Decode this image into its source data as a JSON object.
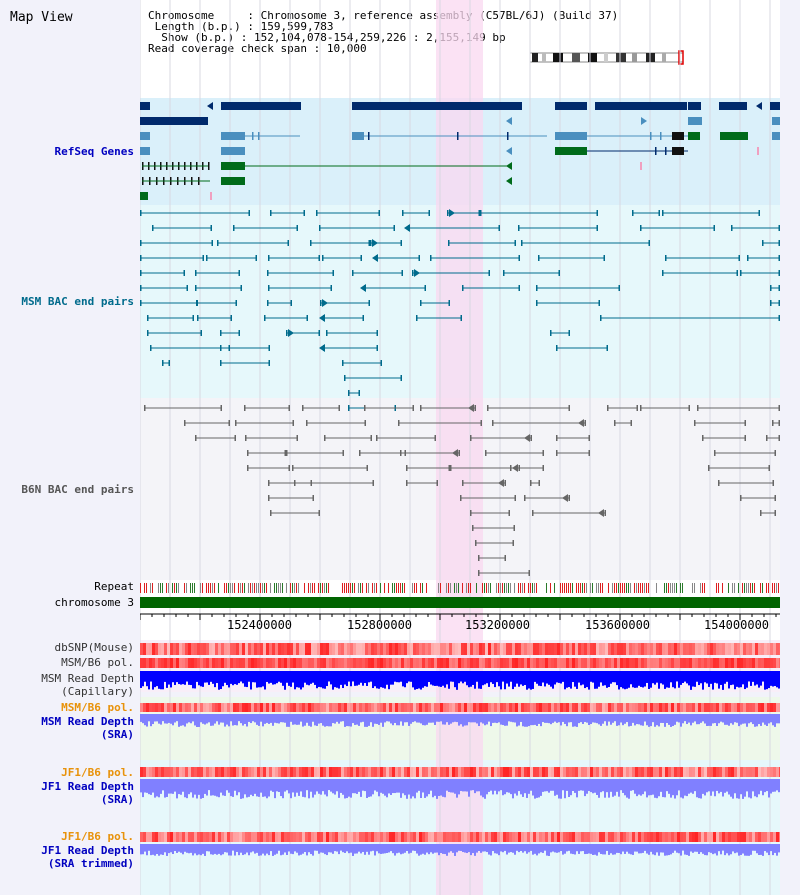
{
  "title": "Map View",
  "info": {
    "chromosome_label": "Chromosome",
    "chromosome_value": "Chromosome 3, reference assembly (C57BL/6J) (Build 37)",
    "length_label": "Length (b.p.)",
    "length_value": "159,599,783",
    "show_label": "Show (b.p.)",
    "show_value": "152,104,078-154,259,226 : 2,155,149 bp",
    "span_label": "Read coverage check span",
    "span_value": "10,000"
  },
  "tracks": {
    "refseq": "RefSeq Genes",
    "msm_bac": "MSM BAC end pairs",
    "b6n_bac": "B6N BAC end pairs",
    "repeat": "Repeat",
    "chromosome": "chromosome 3",
    "dbsnp": "dbSNP(Mouse)",
    "msm_b6_pol_1": "MSM/B6 pol.",
    "msm_depth_cap_1": "MSM Read Depth",
    "msm_depth_cap_2": "(Capillary)",
    "msm_b6_pol_2": "MSM/B6 pol.",
    "msm_depth_sra_1": "MSM Read Depth",
    "msm_depth_sra_2": "(SRA)",
    "jf1_pol_1": "JF1/B6 pol.",
    "jf1_depth_sra_1": "JF1 Read Depth",
    "jf1_depth_sra_2": "(SRA)",
    "jf1_pol_2": "JF1/B6 pol.",
    "jf1_depth_trim_1": "JF1 Read Depth",
    "jf1_depth_trim_2": "(SRA trimmed)"
  },
  "axis": {
    "ticks": [
      "152400000",
      "152800000",
      "153200000",
      "153600000",
      "154000000"
    ]
  },
  "colors": {
    "refseq_dark": "#002a6c",
    "refseq_mid": "#4a8fbf",
    "refseq_green": "#006b1a",
    "bac_teal": "#006b8c",
    "bac_gray": "#666666",
    "highlight": "#f9d8f0",
    "chrom_green": "#006400",
    "snp_red": "#ff3030",
    "depth_blue": "#0000ff",
    "depth_light": "#8080ff"
  }
}
